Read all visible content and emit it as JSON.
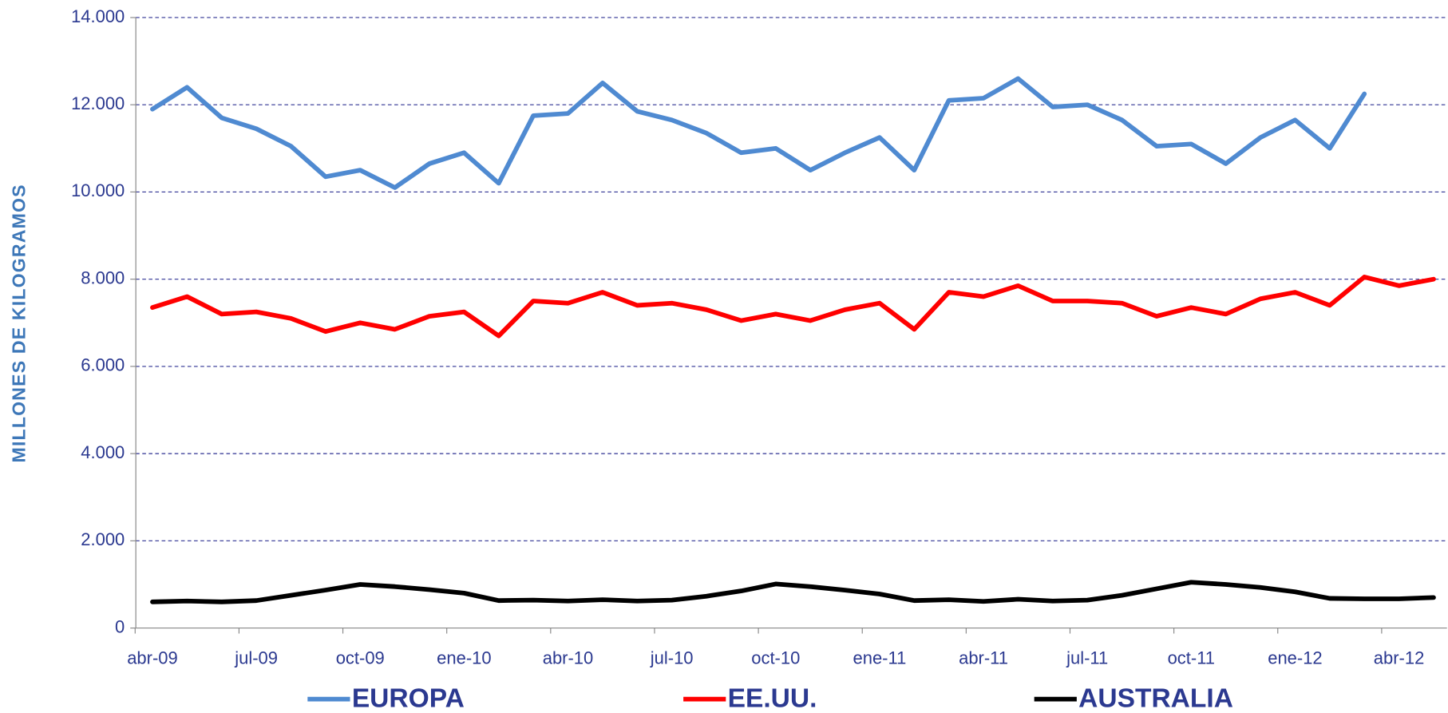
{
  "chart_data": {
    "type": "line",
    "y_label": "MILLONES DE KILOGRAMOS",
    "categories": [
      "abr-09",
      null,
      null,
      "jul-09",
      null,
      null,
      "oct-09",
      null,
      null,
      "ene-10",
      null,
      null,
      "abr-10",
      null,
      null,
      "jul-10",
      null,
      null,
      "oct-10",
      null,
      null,
      "ene-11",
      null,
      null,
      "abr-11",
      null,
      null,
      "jul-11",
      null,
      null,
      "oct-11",
      null,
      null,
      "ene-12",
      null,
      null,
      "abr-12",
      null
    ],
    "ylim": [
      0,
      14000
    ],
    "yticks": [
      0,
      {
        "value": 2000,
        "label": "2.000"
      },
      {
        "value": 4000,
        "label": "4.000"
      },
      {
        "value": 6000,
        "label": "6.000"
      },
      {
        "value": 8000,
        "label": "8.000"
      },
      {
        "value": 10000,
        "label": "10.000"
      },
      {
        "value": 12000,
        "label": "12.000"
      },
      {
        "value": 14000,
        "label": "14.000"
      }
    ],
    "grid": true,
    "legend": "bottom",
    "series": [
      {
        "name": "EUROPA",
        "color": "#4f8ad1",
        "values": [
          11900,
          12400,
          11700,
          11450,
          11050,
          10350,
          10500,
          10100,
          10650,
          10900,
          10200,
          11750,
          11800,
          12500,
          11850,
          11650,
          11350,
          10900,
          11000,
          10500,
          10900,
          11250,
          10500,
          12100,
          12150,
          12600,
          11950,
          12000,
          11650,
          11050,
          11100,
          10650,
          11250,
          11650,
          11000,
          12250,
          null,
          null
        ]
      },
      {
        "name": "EE.UU.",
        "color": "#ff0000",
        "values": [
          7350,
          7600,
          7200,
          7250,
          7100,
          6800,
          7000,
          6850,
          7150,
          7250,
          6700,
          7500,
          7450,
          7700,
          7400,
          7450,
          7300,
          7050,
          7200,
          7050,
          7300,
          7450,
          6850,
          7700,
          7600,
          7850,
          7500,
          7500,
          7450,
          7150,
          7350,
          7200,
          7550,
          7700,
          7400,
          8050,
          7850,
          8000
        ]
      },
      {
        "name": "AUSTRALIA",
        "color": "#000000",
        "values": [
          600,
          620,
          600,
          630,
          750,
          870,
          1000,
          950,
          880,
          800,
          630,
          640,
          620,
          650,
          620,
          640,
          730,
          850,
          1010,
          950,
          870,
          780,
          630,
          650,
          610,
          660,
          620,
          640,
          750,
          900,
          1050,
          1000,
          930,
          830,
          680,
          670,
          670,
          700
        ]
      }
    ]
  }
}
